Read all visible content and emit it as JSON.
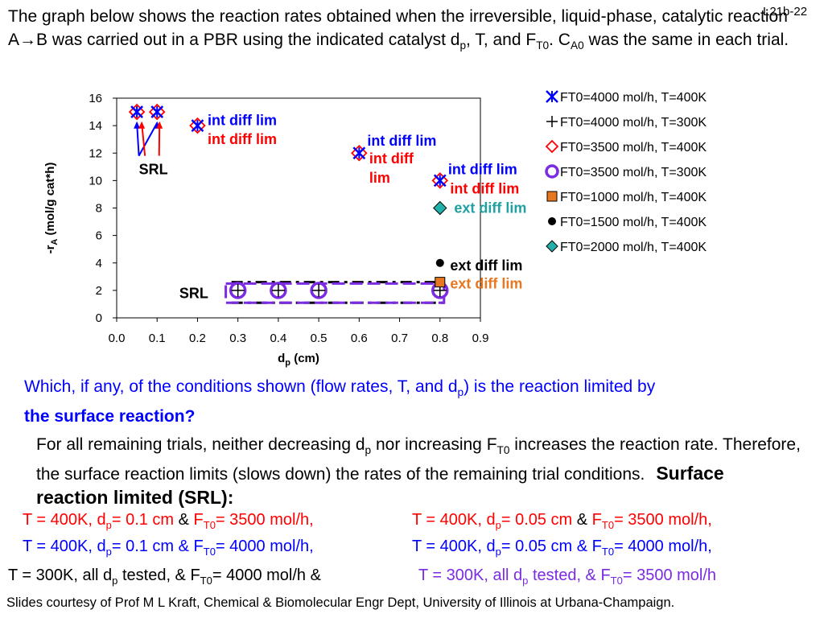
{
  "slide_id": "L21b-22",
  "intro": {
    "p1": "The graph below shows the reaction rates obtained when the irreversible, liquid-phase, catalytic reaction A→B was carried out in a PBR using the indicated catalyst d",
    "sub_p": "p",
    "p2": ", T, and F",
    "sub_t0": "T0",
    "p3": ". C",
    "sub_a0": "A0",
    "p4": " was the same in each trial."
  },
  "chart_data": {
    "type": "scatter",
    "xlabel": "d",
    "xlabel_sub": "p",
    "xlabel_unit": " (cm)",
    "ylabel": "-r",
    "ylabel_sub": "A",
    "ylabel_unit": " (mol/g cat*h)",
    "xlim": [
      0.0,
      0.9
    ],
    "ylim": [
      0,
      16
    ],
    "x_ticks": [
      "0.0",
      "0.1",
      "0.2",
      "0.3",
      "0.4",
      "0.5",
      "0.6",
      "0.7",
      "0.8",
      "0.9"
    ],
    "y_ticks": [
      "0",
      "2",
      "4",
      "6",
      "8",
      "10",
      "12",
      "14",
      "16"
    ],
    "grid": false,
    "legend_position": "top-right",
    "series": [
      {
        "name": "FT0=4000 mol/h, T=400K",
        "marker": "x",
        "color": "#0000ff",
        "x": [
          0.05,
          0.1,
          0.2,
          0.6,
          0.8
        ],
        "y": [
          15,
          15,
          14,
          12,
          10
        ]
      },
      {
        "name": "FT0=4000 mol/h, T=300K",
        "marker": "plus",
        "color": "#000000",
        "x": [
          0.3,
          0.4,
          0.5,
          0.8
        ],
        "y": [
          2,
          2,
          2,
          2
        ]
      },
      {
        "name": "FT0=3500 mol/h, T=400K",
        "marker": "diamond-open",
        "color": "#ff0000",
        "x": [
          0.05,
          0.1,
          0.2,
          0.6,
          0.8
        ],
        "y": [
          15,
          15,
          14,
          12,
          10
        ]
      },
      {
        "name": "FT0=3500 mol/h, T=300K",
        "marker": "circle-open",
        "color": "#7b2be2",
        "x": [
          0.3,
          0.4,
          0.5,
          0.8
        ],
        "y": [
          2,
          2,
          2,
          2
        ]
      },
      {
        "name": "FT0=1000 mol/h, T=400K",
        "marker": "square",
        "color": "#e87722",
        "x": [
          0.8
        ],
        "y": [
          2.6
        ]
      },
      {
        "name": "FT0=1500 mol/h, T=400K",
        "marker": "circle",
        "color": "#000000",
        "x": [
          0.8
        ],
        "y": [
          4
        ]
      },
      {
        "name": "FT0=2000 mol/h, T=400K",
        "marker": "diamond",
        "color": "#20b2aa",
        "x": [
          0.8
        ],
        "y": [
          8
        ]
      }
    ],
    "annotations": [
      {
        "text": "int diff lim",
        "color": "#0000ff",
        "x": 0.225,
        "y": 14.4
      },
      {
        "text": "int diff lim",
        "color": "#ff0000",
        "x": 0.225,
        "y": 13.0
      },
      {
        "text": "int diff lim",
        "color": "#0000ff",
        "x": 0.62,
        "y": 12.9
      },
      {
        "text": "int diff",
        "color": "#ff0000",
        "x": 0.625,
        "y": 11.6
      },
      {
        "text": "lim",
        "color": "#ff0000",
        "x": 0.625,
        "y": 10.2
      },
      {
        "text": "int diff lim",
        "color": "#0000ff",
        "x": 0.82,
        "y": 10.8
      },
      {
        "text": "int diff lim",
        "color": "#ff0000",
        "x": 0.825,
        "y": 9.4
      },
      {
        "text": "ext diff lim",
        "color": "#20a0a0",
        "x": 0.835,
        "y": 8.0
      },
      {
        "text": "ext diff lim",
        "color": "#000000",
        "x": 0.825,
        "y": 3.8
      },
      {
        "text": "ext diff lim",
        "color": "#e87722",
        "x": 0.825,
        "y": 2.5
      },
      {
        "text": "SRL",
        "color": "#000000",
        "x": 0.055,
        "y": 10.8
      },
      {
        "text": "SRL",
        "color": "#000000",
        "x": 0.155,
        "y": 1.8
      }
    ]
  },
  "question": {
    "part1": "Which, if any, of the conditions shown (flow rates, T, and d",
    "sub": "p",
    "part2": ") is the reaction limited by ",
    "bold": "the surface reaction?"
  },
  "answer": {
    "p1": "For all remaining trials, neither decreasing d",
    "sub_p": "p",
    "p2": " nor increasing F",
    "sub_t0": "T0",
    "p3": " increases the reaction rate.  Therefore, the surface reaction limits (slows down) the rates of the remaining trial conditions.",
    "srl_heading": "Surface reaction limited (SRL):"
  },
  "conditions": {
    "row1a": {
      "t": "T = 400K, d",
      "sub": "p",
      "mid": "= 0.1 cm ",
      "amp": "&",
      "f": " F",
      "fsub": "T0",
      "end": "= 3500 mol/h,"
    },
    "row1b": {
      "t": "T = 400K, d",
      "sub": "p",
      "mid": "= 0.05 cm ",
      "amp": "&",
      "f": " F",
      "fsub": "T0",
      "end": "= 3500 mol/h,"
    },
    "row2a": {
      "t": "T = 400K, d",
      "sub": "p",
      "mid": "= 0.1 cm & F",
      "fsub": "T0",
      "end": "= 4000 mol/h,"
    },
    "row2b": {
      "t": "T = 400K, d",
      "sub": "p",
      "mid": "= 0.05 cm & F",
      "fsub": "T0",
      "end": "= 4000 mol/h,"
    },
    "row3a": {
      "t": "T = 300K, all d",
      "sub": "p",
      "mid": " tested, & F",
      "fsub": "T0",
      "end": "= 4000 mol/h &"
    },
    "row3b": {
      "t": "T = 300K, all d",
      "sub": "p",
      "mid": " tested, & F",
      "fsub": "T0",
      "end": "= 3500 mol/h"
    }
  },
  "footer": "Slides courtesy of Prof M L Kraft, Chemical & Biomolecular Engr Dept, University of Illinois at Urbana-Champaign."
}
